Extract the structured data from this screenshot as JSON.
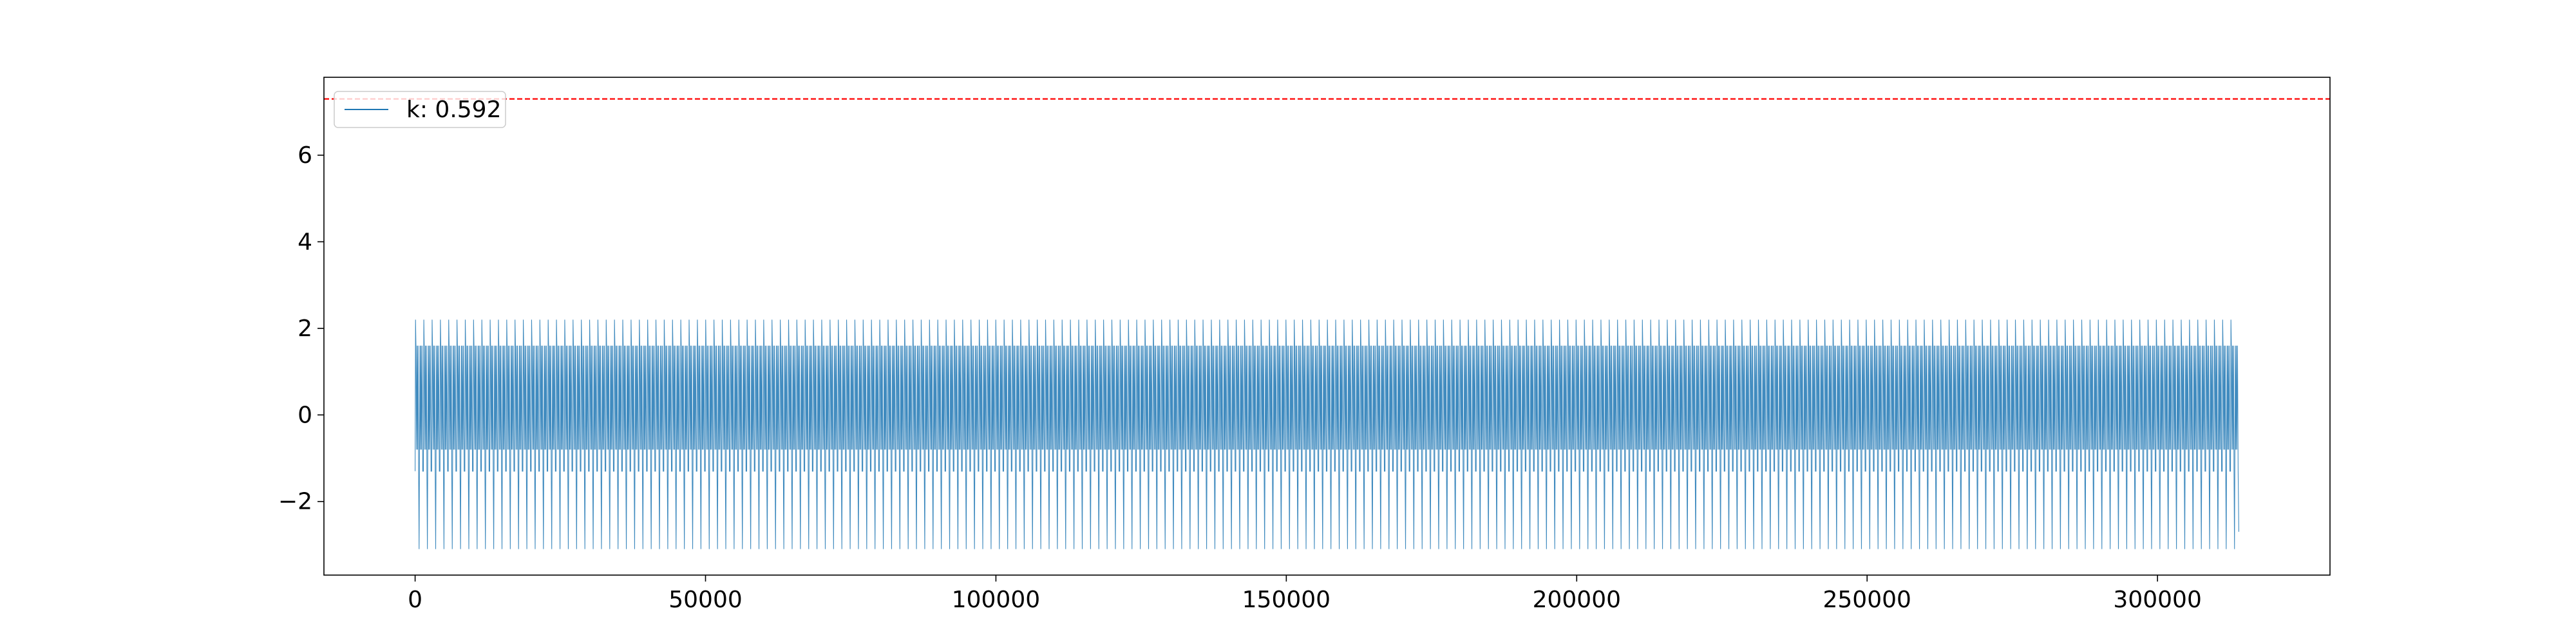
{
  "chart_data": {
    "type": "line",
    "title": "",
    "xlabel": "",
    "ylabel": "",
    "xlim": [
      -15700,
      329700
    ],
    "ylim": [
      -3.7,
      7.8
    ],
    "x_ticks": [
      0,
      50000,
      100000,
      150000,
      200000,
      250000,
      300000
    ],
    "x_tick_labels": [
      "0",
      "50000",
      "100000",
      "150000",
      "200000",
      "250000",
      "300000"
    ],
    "y_ticks": [
      -2,
      0,
      2,
      4,
      6
    ],
    "y_tick_labels": [
      "−2",
      "0",
      "2",
      "4",
      "6"
    ],
    "grid": false,
    "legend_position": "upper-left",
    "series": [
      {
        "name": "k: 0.592",
        "color": "#1f77b4",
        "x_start": 0,
        "x_end": 314000,
        "cycles": 220,
        "upper_envelope": 2.2,
        "lower_envelope": -3.1,
        "dense_band_max": 1.6,
        "dense_band_min": -1.3,
        "secondary_low": -0.8
      }
    ],
    "reference_lines": [
      {
        "orientation": "horizontal",
        "y": 7.3,
        "color": "#ff0000",
        "style": "dashed"
      }
    ]
  }
}
